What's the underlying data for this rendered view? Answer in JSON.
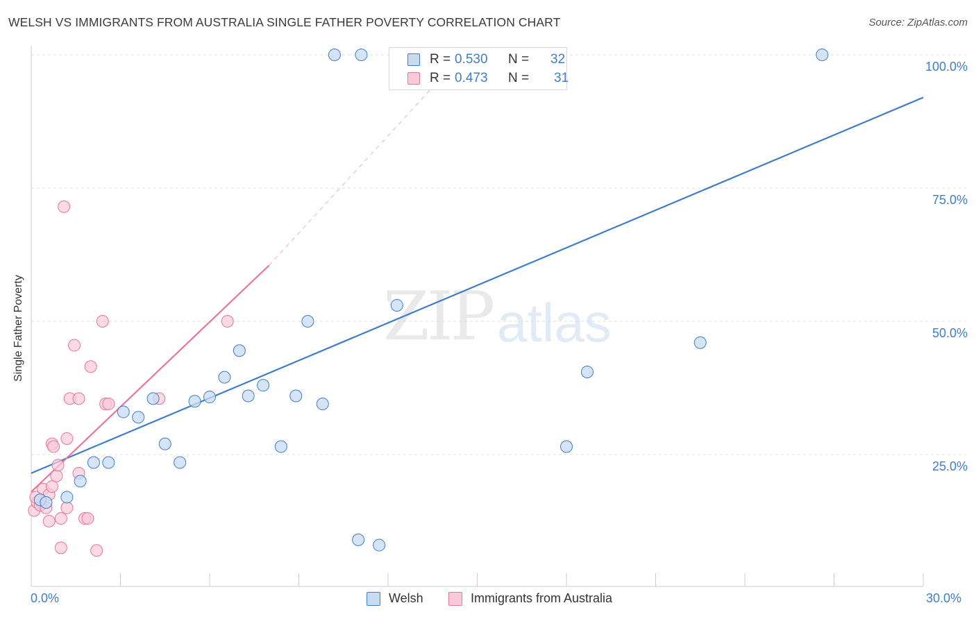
{
  "title": "WELSH VS IMMIGRANTS FROM AUSTRALIA SINGLE FATHER POVERTY CORRELATION CHART",
  "source": "Source: ZipAtlas.com",
  "watermark": {
    "zip": "ZIP",
    "atlas": "atlas"
  },
  "colors": {
    "welsh": "#3f7dc8",
    "welsh_fill": "#c7dbf3",
    "immig": "#e8739b",
    "immig_fill": "#f9cbd9",
    "tick_text": "#3f7dc8"
  },
  "legend_top": [
    {
      "r_label": "R =",
      "r_value": "0.530",
      "n_label": "N =",
      "n_value": "32"
    },
    {
      "r_label": "R =",
      "r_value": "0.473",
      "n_label": "N =",
      "n_value": "31"
    }
  ],
  "legend_bottom": [
    "Welsh",
    "Immigrants from Australia"
  ],
  "chart_data": {
    "type": "scatter",
    "title": "WELSH VS IMMIGRANTS FROM AUSTRALIA SINGLE FATHER POVERTY CORRELATION CHART",
    "xlabel": "",
    "ylabel": "Single Father Poverty",
    "xlim": [
      0,
      30
    ],
    "ylim": [
      0,
      100
    ],
    "x_tick_labels": [
      "0.0%",
      "30.0%"
    ],
    "y_ticks": [
      25,
      50,
      75,
      100
    ],
    "y_tick_labels": [
      "25.0%",
      "50.0%",
      "75.0%",
      "100.0%"
    ],
    "grid": true,
    "legend_position": "top-center",
    "series": [
      {
        "name": "Welsh",
        "points": [
          [
            0.3,
            16.5
          ],
          [
            0.5,
            16.0
          ],
          [
            1.2,
            17.0
          ],
          [
            1.65,
            20.0
          ],
          [
            2.1,
            23.5
          ],
          [
            2.6,
            23.5
          ],
          [
            3.1,
            33.0
          ],
          [
            3.6,
            32.0
          ],
          [
            4.1,
            35.5
          ],
          [
            4.5,
            27.0
          ],
          [
            5.0,
            23.5
          ],
          [
            5.5,
            35.0
          ],
          [
            6.0,
            35.8
          ],
          [
            6.5,
            39.5
          ],
          [
            7.0,
            44.5
          ],
          [
            7.3,
            36.0
          ],
          [
            7.8,
            38.0
          ],
          [
            8.4,
            26.5
          ],
          [
            8.9,
            36.0
          ],
          [
            9.3,
            50.0
          ],
          [
            9.8,
            34.5
          ],
          [
            10.2,
            100.0
          ],
          [
            11.1,
            100.0
          ],
          [
            11.0,
            9.0
          ],
          [
            11.7,
            8.0
          ],
          [
            12.3,
            53.0
          ],
          [
            12.4,
            100.0
          ],
          [
            14.3,
            100.0
          ],
          [
            18.0,
            26.5
          ],
          [
            18.7,
            40.5
          ],
          [
            22.5,
            46.0
          ],
          [
            26.6,
            100.0
          ]
        ]
      },
      {
        "name": "Immigrants from Australia",
        "points": [
          [
            0.1,
            14.5
          ],
          [
            0.2,
            16.0
          ],
          [
            0.3,
            15.5
          ],
          [
            0.4,
            18.5
          ],
          [
            0.5,
            15.0
          ],
          [
            0.6,
            17.5
          ],
          [
            0.7,
            19.0
          ],
          [
            0.6,
            12.5
          ],
          [
            0.7,
            27.0
          ],
          [
            0.75,
            26.5
          ],
          [
            0.85,
            21.0
          ],
          [
            0.9,
            23.0
          ],
          [
            1.0,
            7.5
          ],
          [
            1.0,
            13.0
          ],
          [
            1.1,
            71.5
          ],
          [
            1.2,
            15.0
          ],
          [
            1.2,
            28.0
          ],
          [
            1.3,
            35.5
          ],
          [
            1.45,
            45.5
          ],
          [
            1.6,
            21.5
          ],
          [
            1.6,
            35.5
          ],
          [
            1.8,
            13.0
          ],
          [
            1.9,
            13.0
          ],
          [
            2.0,
            41.5
          ],
          [
            2.2,
            7.0
          ],
          [
            2.4,
            50.0
          ],
          [
            2.5,
            34.5
          ],
          [
            2.6,
            34.5
          ],
          [
            4.3,
            35.5
          ],
          [
            6.6,
            50.0
          ],
          [
            0.15,
            17.0
          ]
        ]
      }
    ],
    "trendlines": [
      {
        "series": "Welsh",
        "x": [
          0,
          30
        ],
        "y": [
          21.5,
          92.0
        ]
      },
      {
        "series": "Immigrants from Australia",
        "x": [
          0,
          8.0
        ],
        "y": [
          18.0,
          60.5
        ],
        "dashed_extension_to": [
          14.5,
          100.0
        ]
      }
    ]
  }
}
